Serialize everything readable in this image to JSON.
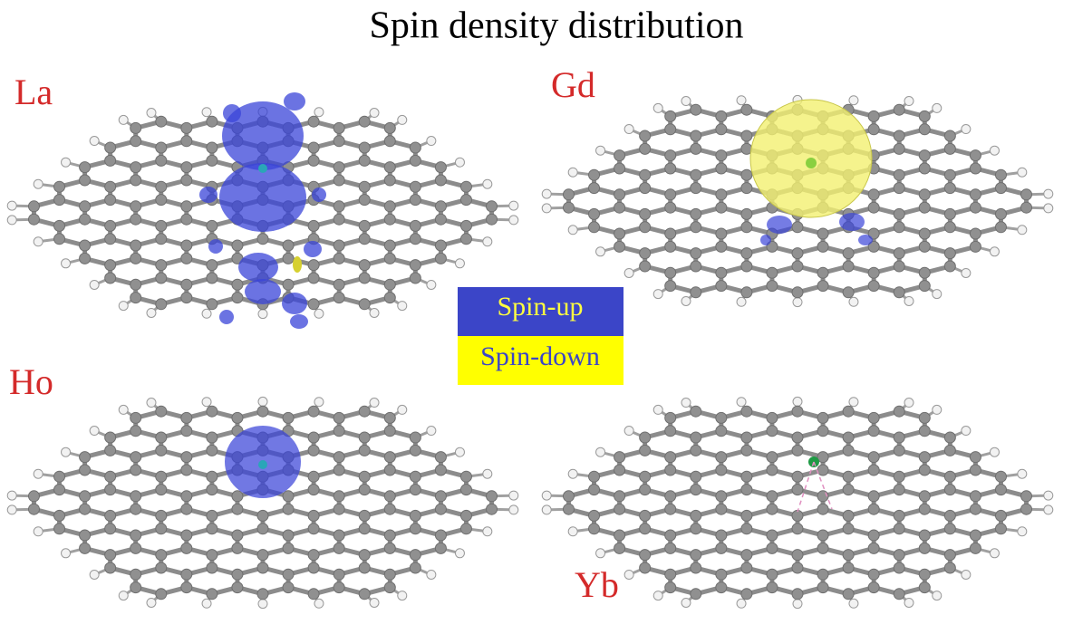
{
  "title": "Spin density distribution",
  "panels": [
    {
      "label": "La"
    },
    {
      "label": "Gd"
    },
    {
      "label": "Ho"
    },
    {
      "label": "Yb"
    }
  ],
  "legend": {
    "items": [
      "Spin-up",
      "Spin-down"
    ]
  }
}
